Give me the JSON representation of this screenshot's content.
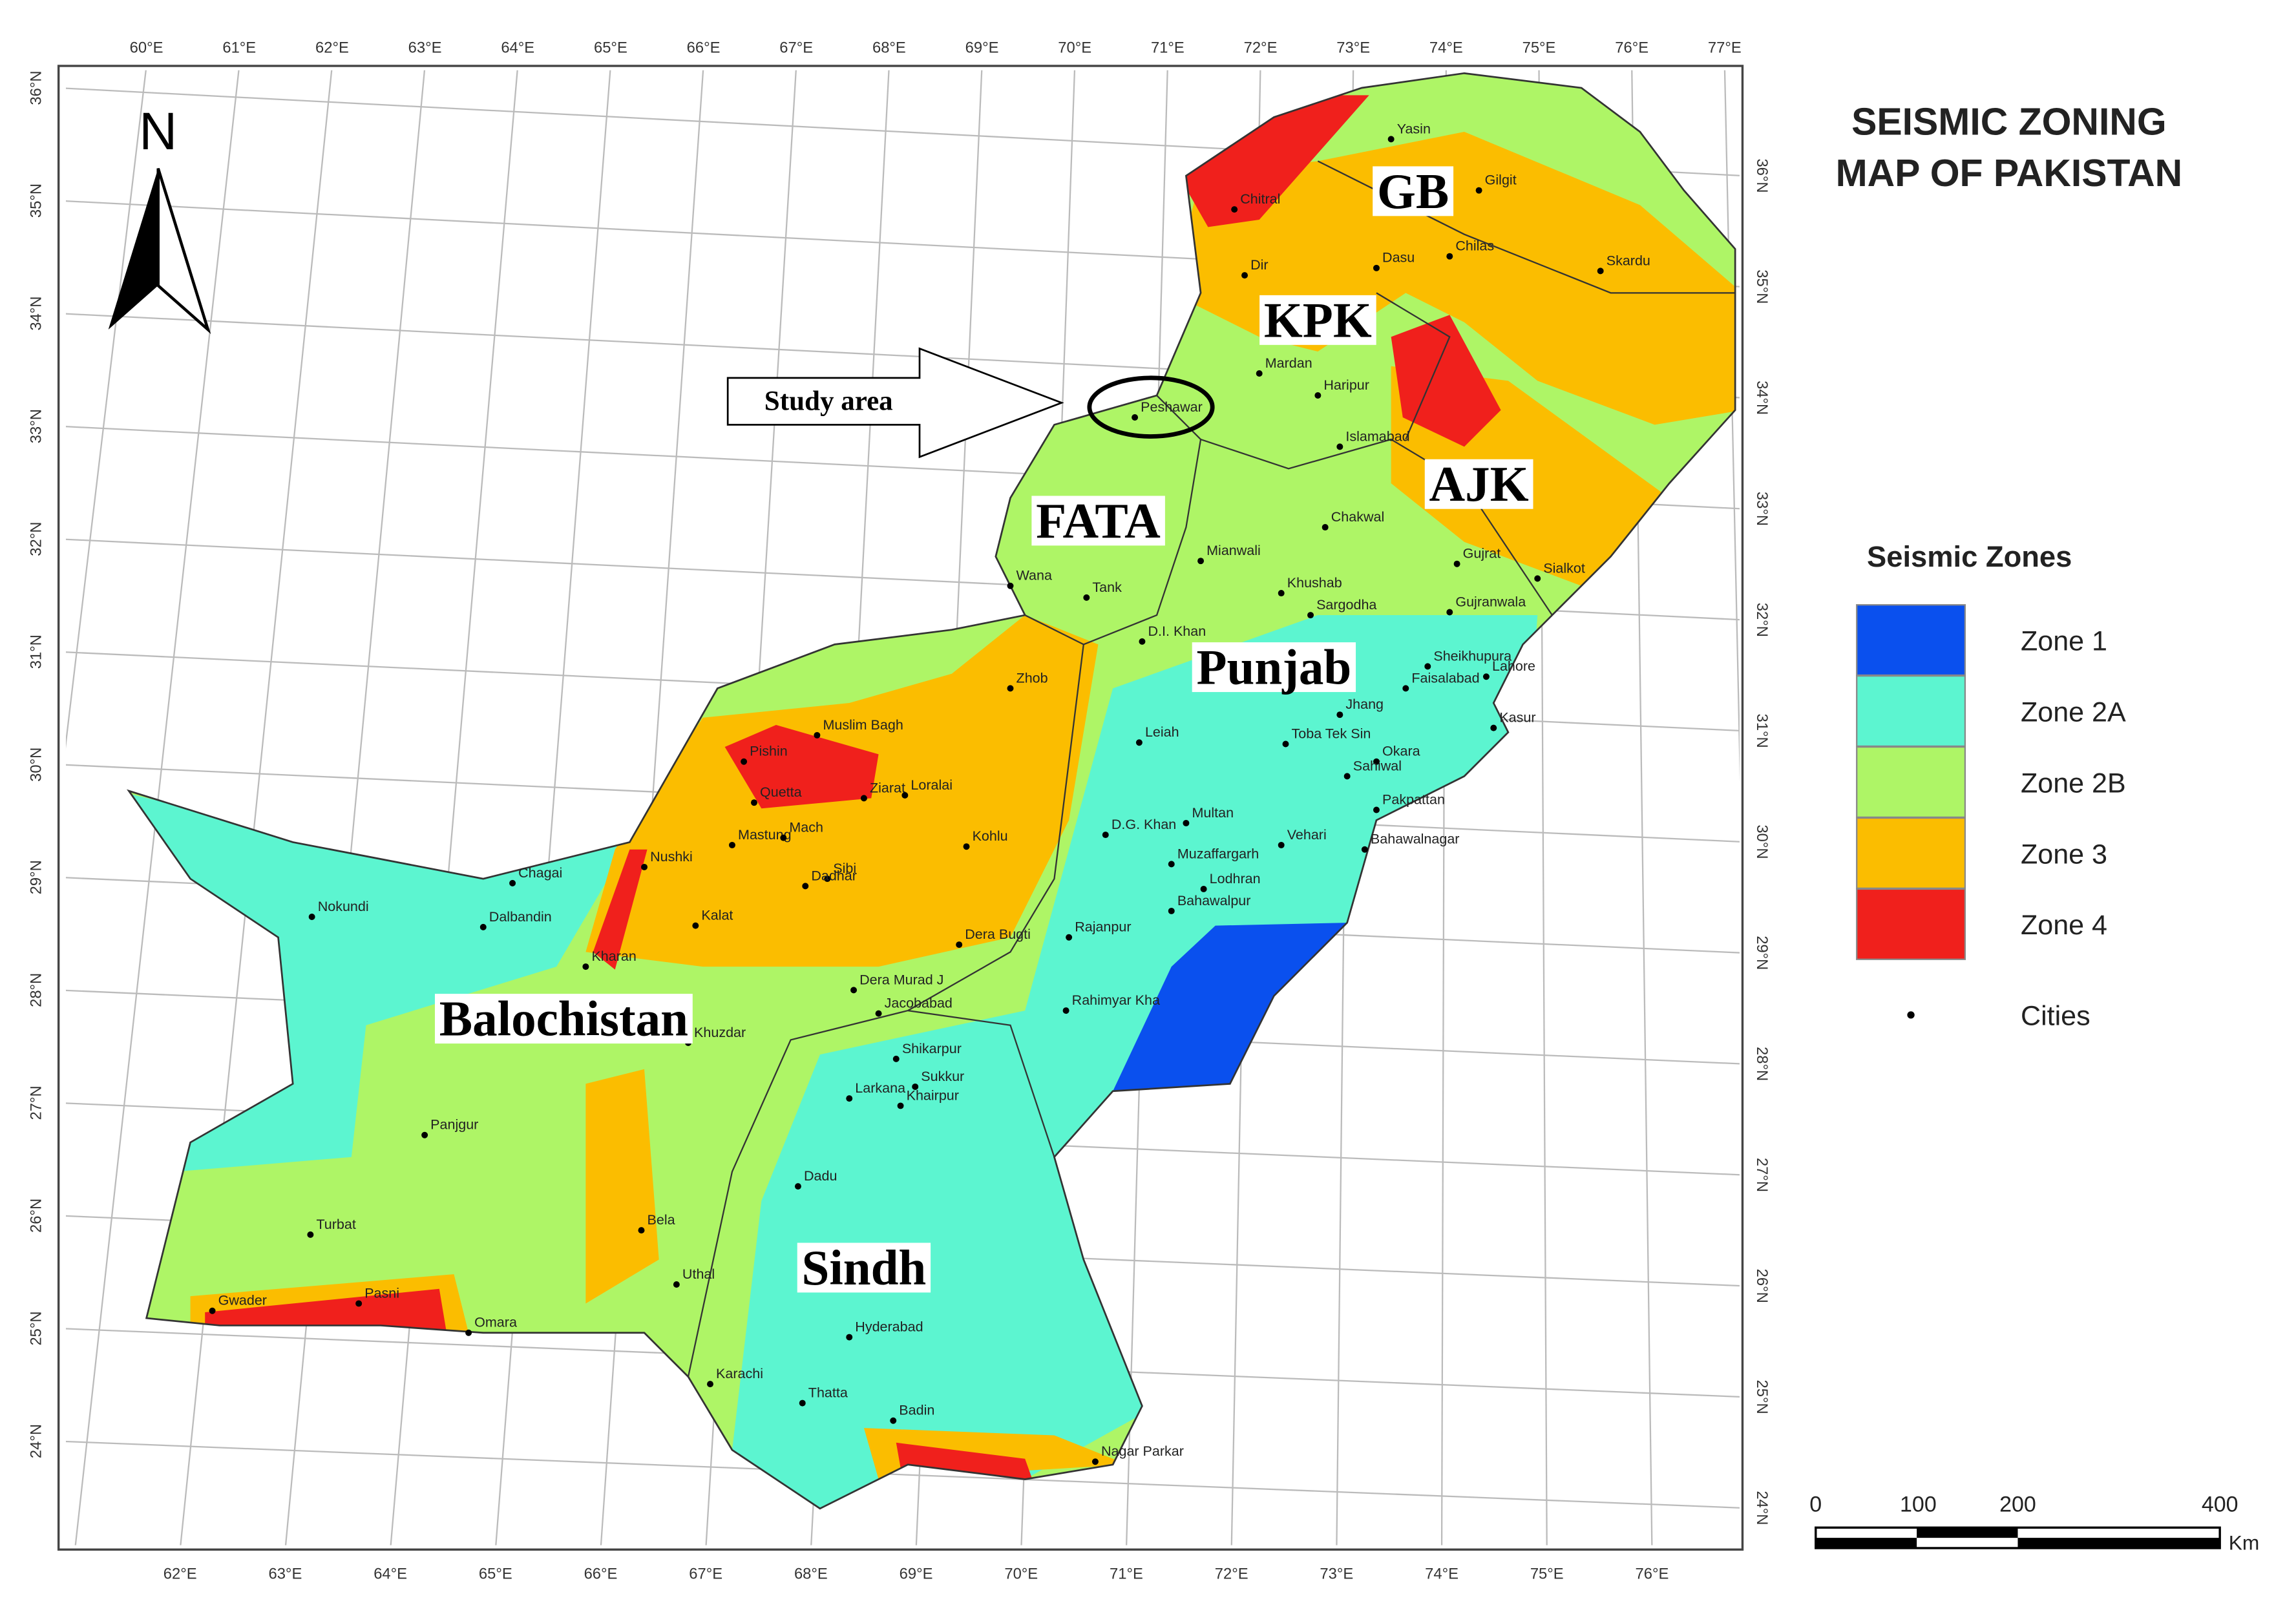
{
  "title": [
    "SEISMIC ZONING",
    "MAP OF PAKISTAN"
  ],
  "north_label": "N",
  "study_area": "Study area",
  "provinces": [
    "GB",
    "KPK",
    "AJK",
    "FATA",
    "Punjab",
    "Balochistan",
    "Sindh"
  ],
  "cities": [
    "Chitral",
    "Yasin",
    "Gilgit",
    "Chilas",
    "Skardu",
    "Dir",
    "Dasu",
    "Mardan",
    "Haripur",
    "Peshawar",
    "Islamabad",
    "Chakwal",
    "Mianwali",
    "Gujrat",
    "Sialkot",
    "Khushab",
    "Sargodha",
    "Wana",
    "Tank",
    "Gujranwala",
    "D.I. Khan",
    "Zhob",
    "Sheikhupura",
    "Faisalabad",
    "Lahore",
    "Jhang",
    "Toba Tek Sin",
    "Kasur",
    "Leiah",
    "Okara",
    "Sahiwal",
    "Muslim Bagh",
    "Pishin",
    "Loralai",
    "Quetta",
    "Ziarat",
    "Mastung",
    "Mach",
    "Kohlu",
    "Sibi",
    "Dadhar",
    "Nushki",
    "Chagai",
    "Nokundi",
    "Dalbandin",
    "Kalat",
    "D.G. Khan",
    "Multan",
    "Vehari",
    "Muzaffargarh",
    "Pakpattan",
    "Bahawalnagar",
    "Lodhran",
    "Bahawalpur",
    "Kharan",
    "Dera Bugti",
    "Rajanpur",
    "Dera Murad J",
    "Rahimyar Kha",
    "Jacobabad",
    "Khuzdar",
    "Shikarpur",
    "Sukkur",
    "Larkana",
    "Khairpur",
    "Panjgur",
    "Dadu",
    "Turbat",
    "Bela",
    "Uthal",
    "Gwader",
    "Pasni",
    "Omara",
    "Hyderabad",
    "Karachi",
    "Thatta",
    "Badin",
    "Nagar Parkar"
  ],
  "legend": {
    "title": "Seismic Zones",
    "zones": [
      "Zone 1",
      "Zone 2A",
      "Zone 2B",
      "Zone 3",
      "Zone 4"
    ],
    "cities": "Cities"
  },
  "grid_labels": {
    "top": [
      "60°E",
      "61°E",
      "62°E",
      "63°E",
      "64°E",
      "65°E",
      "66°E",
      "67°E",
      "68°E",
      "69°E",
      "70°E",
      "71°E",
      "72°E",
      "73°E",
      "74°E",
      "75°E",
      "76°E",
      "77°E"
    ],
    "bottom": [
      "62°E",
      "63°E",
      "64°E",
      "65°E",
      "66°E",
      "67°E",
      "68°E",
      "69°E",
      "70°E",
      "71°E",
      "72°E",
      "73°E",
      "74°E",
      "75°E",
      "76°E"
    ],
    "left": [
      "36°N",
      "35°N",
      "34°N",
      "33°N",
      "32°N",
      "31°N",
      "30°N",
      "29°N",
      "28°N",
      "27°N",
      "26°N",
      "25°N",
      "24°N"
    ],
    "right": [
      "36°N",
      "35°N",
      "34°N",
      "33°N",
      "32°N",
      "31°N",
      "30°N",
      "29°N",
      "28°N",
      "27°N",
      "26°N",
      "25°N",
      "24°N"
    ]
  },
  "scale_bar": {
    "labels": [
      "0",
      "100",
      "200",
      "400"
    ],
    "unit": "Km"
  }
}
